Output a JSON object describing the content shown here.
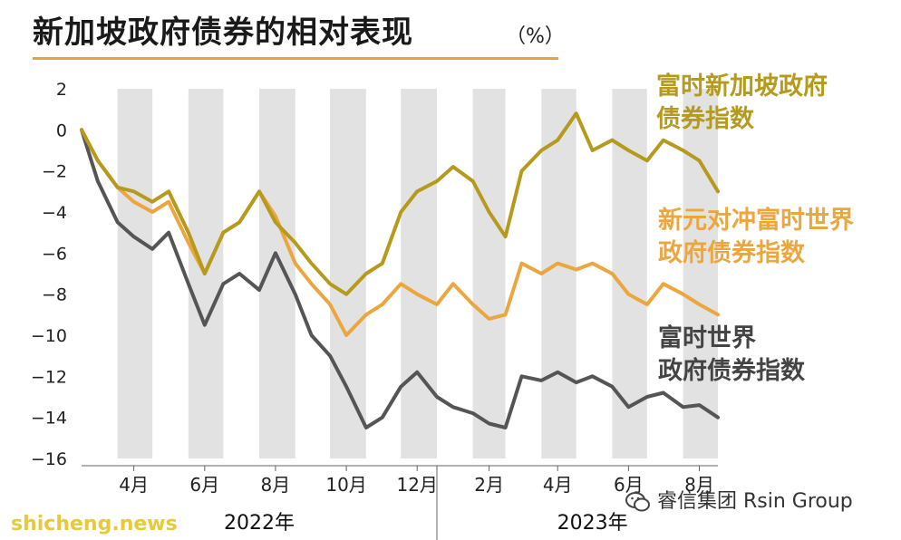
{
  "title": "新加坡政府债券的相对表现",
  "unit": "（%）",
  "watermark": "shicheng.news",
  "brand": {
    "text": "睿信集团 Rsin Group",
    "icon": "wechat-icon"
  },
  "labels": {
    "sgd_gov": [
      "富时新加坡政府",
      "债券指数"
    ],
    "wgbi_hedged": [
      "新元对冲富时世界",
      "政府债券指数"
    ],
    "wgbi": [
      "富时世界",
      "政府债券指数"
    ]
  },
  "colors": {
    "sgd_gov": "#b59a1d",
    "wgbi_hedged": "#eca63e",
    "wgbi": "#555555",
    "band": "#e2e2e2",
    "title_rule": "#e8a33a"
  },
  "chart_data": {
    "type": "line",
    "title": "新加坡政府债券的相对表现",
    "ylabel": "（%）",
    "ylim": [
      -16,
      2
    ],
    "yticks": [
      2,
      0,
      -2,
      -4,
      -6,
      -8,
      -10,
      -12,
      -14,
      -16
    ],
    "x_month_ticks": [
      "4月",
      "6月",
      "8月",
      "10月",
      "12月",
      "2月",
      "4月",
      "6月",
      "8月"
    ],
    "years": [
      "2022年",
      "2023年"
    ],
    "xlim": [
      "2022-03-01",
      "2023-08-31"
    ],
    "grid": "alternating month bands",
    "series": [
      {
        "name": "富时新加坡政府债券指数",
        "x": [
          "2022-03-01",
          "2022-03-15",
          "2022-04-01",
          "2022-04-15",
          "2022-05-01",
          "2022-05-15",
          "2022-06-01",
          "2022-06-15",
          "2022-07-01",
          "2022-07-15",
          "2022-08-01",
          "2022-08-15",
          "2022-09-01",
          "2022-09-15",
          "2022-10-01",
          "2022-10-15",
          "2022-11-01",
          "2022-11-15",
          "2022-12-01",
          "2022-12-15",
          "2023-01-01",
          "2023-01-15",
          "2023-02-01",
          "2023-02-15",
          "2023-03-01",
          "2023-03-15",
          "2023-04-01",
          "2023-04-15",
          "2023-05-01",
          "2023-05-15",
          "2023-06-01",
          "2023-06-15",
          "2023-07-01",
          "2023-07-15",
          "2023-08-01",
          "2023-08-15",
          "2023-08-31"
        ],
        "y": [
          0,
          -1.5,
          -2.8,
          -3,
          -3.5,
          -3,
          -5,
          -7,
          -5,
          -4.5,
          -3,
          -4.5,
          -5.5,
          -6.5,
          -7.5,
          -8,
          -7,
          -6.5,
          -4,
          -3,
          -2.5,
          -1.8,
          -2.5,
          -4,
          -5.2,
          -2,
          -1,
          -0.5,
          0.8,
          -1,
          -0.5,
          -1,
          -1.5,
          -0.5,
          -1,
          -1.5,
          -3
        ]
      },
      {
        "name": "新元对冲富时世界政府债券指数",
        "x": [
          "2022-03-01",
          "2022-03-15",
          "2022-04-01",
          "2022-04-15",
          "2022-05-01",
          "2022-05-15",
          "2022-06-01",
          "2022-06-15",
          "2022-07-01",
          "2022-07-15",
          "2022-08-01",
          "2022-08-15",
          "2022-09-01",
          "2022-09-15",
          "2022-10-01",
          "2022-10-15",
          "2022-11-01",
          "2022-11-15",
          "2022-12-01",
          "2022-12-15",
          "2023-01-01",
          "2023-01-15",
          "2023-02-01",
          "2023-02-15",
          "2023-03-01",
          "2023-03-15",
          "2023-04-01",
          "2023-04-15",
          "2023-05-01",
          "2023-05-15",
          "2023-06-01",
          "2023-06-15",
          "2023-07-01",
          "2023-07-15",
          "2023-08-01",
          "2023-08-15",
          "2023-08-31"
        ],
        "y": [
          0,
          -1.5,
          -2.8,
          -3.5,
          -4,
          -3.5,
          -5.5,
          -7,
          -5,
          -4.5,
          -3,
          -4.2,
          -6.5,
          -7.5,
          -8.5,
          -10,
          -9,
          -8.5,
          -7.5,
          -8,
          -8.5,
          -7.5,
          -8.5,
          -9.2,
          -9,
          -6.5,
          -7,
          -6.5,
          -6.8,
          -6.5,
          -7,
          -8,
          -8.5,
          -7.5,
          -8,
          -8.5,
          -9
        ]
      },
      {
        "name": "富时世界政府债券指数",
        "x": [
          "2022-03-01",
          "2022-03-15",
          "2022-04-01",
          "2022-04-15",
          "2022-05-01",
          "2022-05-15",
          "2022-06-01",
          "2022-06-15",
          "2022-07-01",
          "2022-07-15",
          "2022-08-01",
          "2022-08-15",
          "2022-09-01",
          "2022-09-15",
          "2022-10-01",
          "2022-10-15",
          "2022-11-01",
          "2022-11-15",
          "2022-12-01",
          "2022-12-15",
          "2023-01-01",
          "2023-01-15",
          "2023-02-01",
          "2023-02-15",
          "2023-03-01",
          "2023-03-15",
          "2023-04-01",
          "2023-04-15",
          "2023-05-01",
          "2023-05-15",
          "2023-06-01",
          "2023-06-15",
          "2023-07-01",
          "2023-07-15",
          "2023-08-01",
          "2023-08-15",
          "2023-08-31"
        ],
        "y": [
          0,
          -2.5,
          -4.5,
          -5.2,
          -5.8,
          -5,
          -7.5,
          -9.5,
          -7.5,
          -7,
          -7.8,
          -6,
          -8,
          -10,
          -11,
          -12.5,
          -14.5,
          -14,
          -12.5,
          -11.8,
          -13,
          -13.5,
          -13.8,
          -14.3,
          -14.5,
          -12,
          -12.2,
          -11.8,
          -12.3,
          -12,
          -12.5,
          -13.5,
          -13,
          -12.8,
          -13.5,
          -13.4,
          -14
        ]
      }
    ]
  }
}
